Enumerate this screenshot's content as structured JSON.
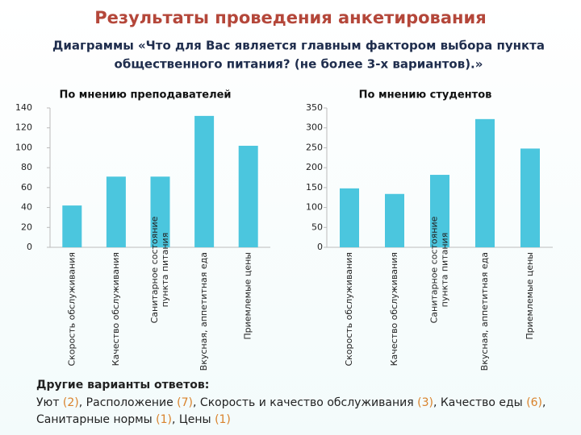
{
  "slide": {
    "title": "Результаты проведения анкетирования",
    "subtitle": [
      "Диаграммы «Что для Вас является главным фактором выбора пункта",
      "общественного питания? (не более 3-х вариантов).»"
    ]
  },
  "chart_data": [
    {
      "type": "bar",
      "title": "По мнению преподавателей",
      "categories": [
        "Скорость обслуживания",
        "Качество обслуживания",
        "Санитарное состояние\nпункта питания",
        "Вкусная, аппетитная еда",
        "Приемлемые цены"
      ],
      "values": [
        42,
        71,
        71,
        132,
        102
      ],
      "color": "#4bc6de",
      "ylim": [
        0,
        140
      ],
      "yticks": [
        0,
        20,
        40,
        60,
        80,
        100,
        120,
        140
      ]
    },
    {
      "type": "bar",
      "title": "По мнению студентов",
      "categories": [
        "Скорость обслуживания",
        "Качество обслуживания",
        "Санитарное состояние\nпункта питания",
        "Вкусная, аппетитная еда",
        "Приемлемые цены"
      ],
      "values": [
        148,
        134,
        182,
        322,
        248
      ],
      "color": "#4bc6de",
      "ylim": [
        0,
        350
      ],
      "yticks": [
        0,
        50,
        100,
        150,
        200,
        250,
        300,
        350
      ]
    }
  ],
  "other_answers": {
    "heading": "Другие варианты ответов:",
    "separator": ", ",
    "lines": [
      [
        {
          "label": "Уют ",
          "count": "(2)"
        },
        {
          "label": "Расположение ",
          "count": "(7)"
        },
        {
          "label": "Скорость и качество обслуживания ",
          "count": "(3)"
        },
        {
          "label": "Качество еды ",
          "count": "(6)"
        }
      ],
      [
        {
          "label": "Санитарные нормы ",
          "count": "(1)"
        },
        {
          "label": "Цены ",
          "count": "(1)"
        }
      ]
    ]
  }
}
